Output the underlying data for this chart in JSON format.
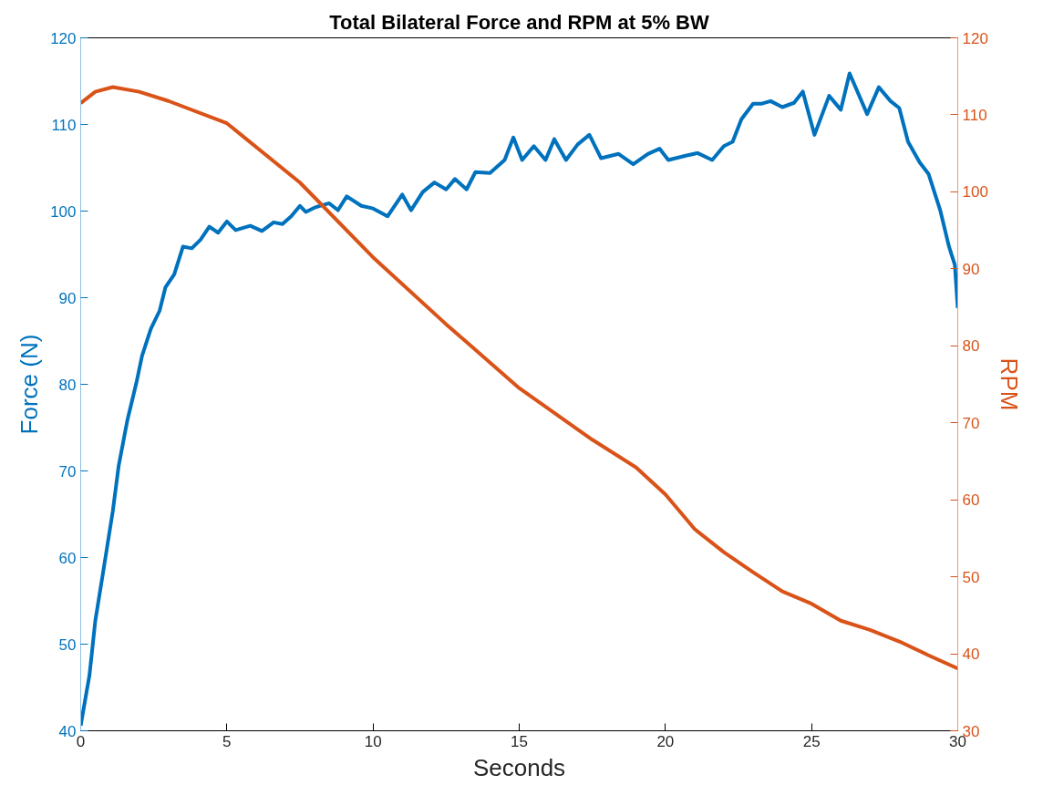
{
  "chart_data": {
    "type": "line",
    "title": "Total Bilateral Force and RPM at 5% BW",
    "xlabel": "Seconds",
    "ylabel": "Force (N)",
    "y2label": "RPM",
    "xlim": [
      0,
      30
    ],
    "xticks": [
      0,
      5,
      10,
      15,
      20,
      25,
      30
    ],
    "ylim": [
      40,
      120
    ],
    "yticks": [
      40,
      50,
      60,
      70,
      80,
      90,
      100,
      110,
      120
    ],
    "y2lim": [
      30,
      120
    ],
    "y2ticks": [
      30,
      40,
      50,
      60,
      70,
      80,
      90,
      100,
      110,
      120
    ],
    "grid": false,
    "marker": "none",
    "line_style": "solid",
    "series": [
      {
        "color": "#0072bd",
        "x": [
          0,
          0.3,
          0.5,
          0.8,
          1.1,
          1.3,
          1.6,
          1.9,
          2.1,
          2.4,
          2.7,
          2.9,
          3.2,
          3.5,
          3.8,
          4.1,
          4.4,
          4.7,
          5.0,
          5.3,
          5.8,
          6.2,
          6.6,
          6.9,
          7.2,
          7.5,
          7.7,
          8.0,
          8.5,
          8.8,
          9.1,
          9.6,
          10.0,
          10.5,
          11.0,
          11.3,
          11.7,
          12.1,
          12.5,
          12.8,
          13.2,
          13.5,
          14.0,
          14.5,
          14.8,
          15.1,
          15.5,
          15.9,
          16.2,
          16.6,
          17.0,
          17.4,
          17.8,
          18.4,
          18.9,
          19.4,
          19.8,
          20.1,
          20.7,
          21.1,
          21.6,
          22.0,
          22.3,
          22.6,
          23.0,
          23.3,
          23.6,
          24.0,
          24.4,
          24.7,
          25.1,
          25.6,
          26.0,
          26.3,
          26.9,
          27.3,
          27.7,
          28.0,
          28.3,
          28.7,
          29.0,
          29.4,
          29.7,
          29.9,
          30
        ],
        "values": [
          40.6,
          46.4,
          52.7,
          59,
          65.4,
          70.6,
          75.9,
          80.1,
          83.3,
          86.4,
          88.5,
          91.2,
          92.7,
          95.9,
          95.7,
          96.7,
          98.2,
          97.5,
          98.8,
          97.8,
          98.3,
          97.7,
          98.7,
          98.5,
          99.4,
          100.6,
          99.9,
          100.4,
          100.9,
          100.1,
          101.7,
          100.6,
          100.3,
          99.4,
          101.9,
          100.1,
          102.2,
          103.3,
          102.5,
          103.7,
          102.5,
          104.5,
          104.4,
          105.9,
          108.5,
          105.9,
          107.5,
          105.9,
          108.3,
          105.9,
          107.7,
          108.8,
          106.1,
          106.6,
          105.4,
          106.6,
          107.2,
          105.9,
          106.4,
          106.7,
          105.9,
          107.5,
          108.0,
          110.6,
          112.4,
          112.4,
          112.7,
          112.0,
          112.5,
          113.8,
          108.8,
          113.3,
          111.7,
          115.9,
          111.2,
          114.3,
          112.7,
          111.9,
          108.0,
          105.6,
          104.3,
          100.1,
          95.9,
          93.8,
          88.8
        ]
      },
      {
        "color": "#d95319",
        "axis": "y2",
        "x": [
          0,
          0.5,
          1.1,
          2,
          3,
          5,
          7.5,
          10,
          12.5,
          15,
          17.5,
          19,
          20,
          21,
          22,
          23,
          24,
          25,
          26,
          27,
          28,
          29,
          30
        ],
        "values": [
          111.5,
          113.0,
          113.6,
          113.0,
          111.8,
          108.9,
          101.2,
          91.5,
          82.8,
          74.5,
          67.8,
          64.2,
          60.7,
          56.2,
          53.2,
          50.6,
          48.1,
          46.5,
          44.3,
          43.1,
          41.6,
          39.8,
          38.1
        ]
      }
    ]
  }
}
